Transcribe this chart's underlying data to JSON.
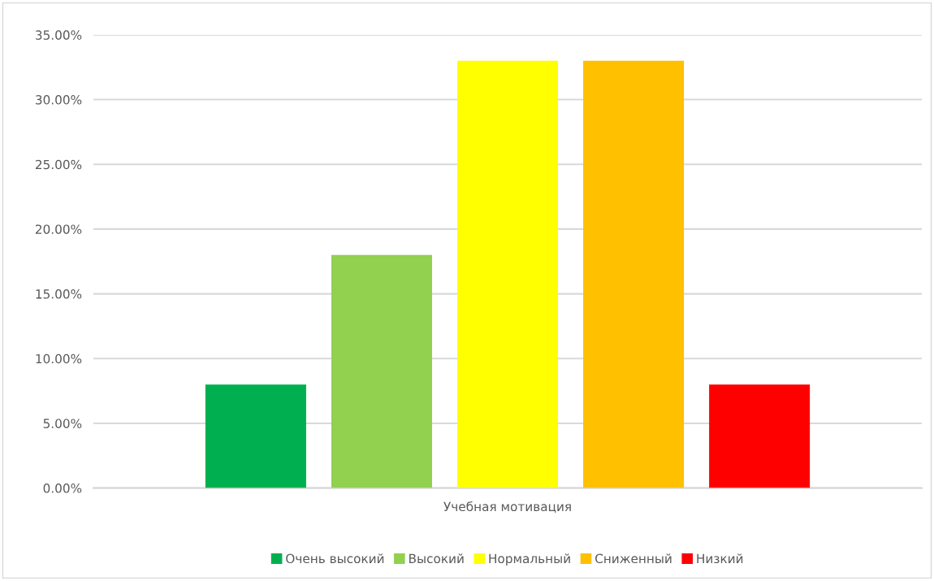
{
  "chart_data": {
    "type": "bar",
    "categories": [
      "Учебная мотивация"
    ],
    "series": [
      {
        "name": "Очень высокий",
        "color": "#00b050",
        "values": [
          8
        ]
      },
      {
        "name": "Высокий",
        "color": "#92d050",
        "values": [
          18
        ]
      },
      {
        "name": "Нормальный",
        "color": "#ffff00",
        "values": [
          33
        ]
      },
      {
        "name": "Сниженный",
        "color": "#ffc000",
        "values": [
          33
        ]
      },
      {
        "name": "Низкий",
        "color": "#ff0000",
        "values": [
          8
        ]
      }
    ],
    "ylim": [
      0,
      35
    ],
    "yticks": [
      {
        "value": 0,
        "label": "0.00%"
      },
      {
        "value": 5,
        "label": "5.00%"
      },
      {
        "value": 10,
        "label": "10.00%"
      },
      {
        "value": 15,
        "label": "15.00%"
      },
      {
        "value": 20,
        "label": "20.00%"
      },
      {
        "value": 25,
        "label": "25.00%"
      },
      {
        "value": 30,
        "label": "30.00%"
      },
      {
        "value": 35,
        "label": "35.00%"
      }
    ],
    "grid": "y",
    "legend": "bottom"
  }
}
